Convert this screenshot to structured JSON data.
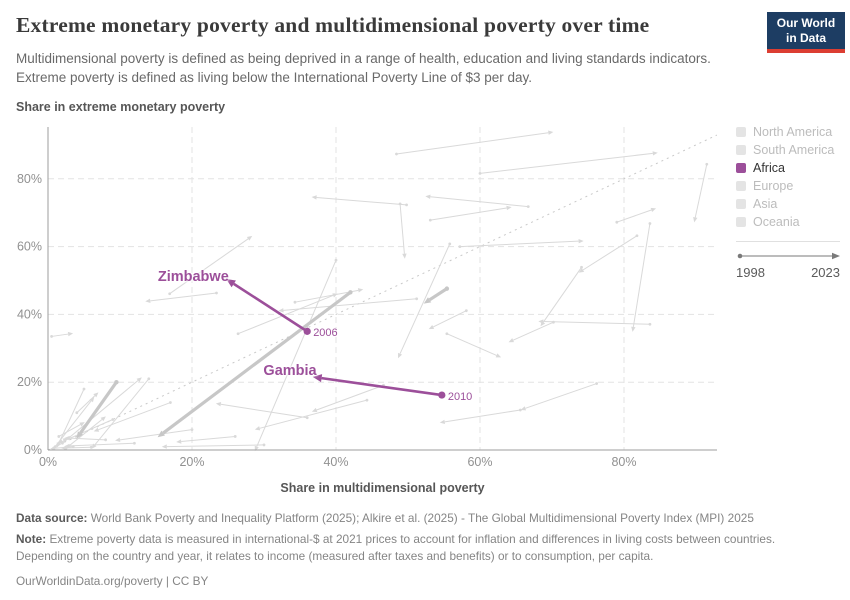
{
  "header": {
    "title": "Extreme monetary poverty and multidimensional poverty over time",
    "subtitle": "Multidimensional poverty is defined as being deprived in a range of health, education and living standards indicators. Extreme poverty is defined as living below the International Poverty Line of $3 per day.",
    "logo": {
      "line1": "Our World",
      "line2": "in Data"
    }
  },
  "colors": {
    "highlight_purple": "#9c4f9a",
    "inactive_swatch": "#e4e4e4",
    "inactive_text": "#bcbcbc",
    "active_text": "#333333",
    "thin_line": "#d9d9d9",
    "thick_line": "#c7c7c7",
    "gridline": "#e3e3e3",
    "axis": "#9e9e9e",
    "parity": "#c9c9c9",
    "tick_text": "#919191",
    "logo_navy": "#1d3d63",
    "logo_red": "#dc3e32"
  },
  "chart_data": {
    "type": "scatter",
    "variant": "connected-arrow-trajectories (start dot 1998 → arrowhead 2023)",
    "title": "Extreme monetary poverty and multidimensional poverty over time",
    "xlabel": "Share in multidimensional poverty",
    "ylabel": "Share in extreme monetary poverty",
    "xlim": [
      0,
      93
    ],
    "ylim": [
      0,
      95
    ],
    "x_ticks": [
      0,
      20,
      40,
      60,
      80
    ],
    "y_ticks": [
      0,
      20,
      40,
      60,
      80
    ],
    "x_tick_labels": [
      "0%",
      "20%",
      "40%",
      "60%",
      "80%"
    ],
    "y_tick_labels": [
      "0%",
      "20%",
      "40%",
      "60%",
      "80%"
    ],
    "grid": true,
    "legend_position": "right",
    "time_range": {
      "start": "1998",
      "end": "2023"
    },
    "parity_line": {
      "style": "dotted",
      "from": [
        0,
        0
      ],
      "to": [
        92.9,
        92.9
      ]
    },
    "highlighted_series": [
      {
        "name": "Zimbabwe",
        "region": "Africa",
        "start": {
          "year": "2006",
          "x": 36.0,
          "y": 35.0
        },
        "end": {
          "x": 25.8,
          "y": 49.0
        }
      },
      {
        "name": "Gambia",
        "region": "Africa",
        "start": {
          "year": "2010",
          "x": 54.7,
          "y": 16.2
        },
        "end": {
          "x": 38.0,
          "y": 21.2
        }
      }
    ],
    "background_trajectories": {
      "description": "Unlabeled grey country trajectories, approximate [x1,y1,x2,y2] in %, arrowhead at end point",
      "segments": [
        [
          48.4,
          87.3,
          69.5,
          93.6
        ],
        [
          60,
          81.6,
          84,
          87.5
        ],
        [
          66.7,
          71.8,
          53.1,
          74.7
        ],
        [
          53.1,
          67.8,
          63.7,
          71.4
        ],
        [
          79,
          67.2,
          83.8,
          70.8
        ],
        [
          91.5,
          84.3,
          89.9,
          68.6
        ],
        [
          57.2,
          60,
          73.7,
          61.6
        ],
        [
          74.1,
          53.9,
          68.8,
          37.7
        ],
        [
          81.8,
          63.2,
          74.3,
          53.1
        ],
        [
          83.6,
          66.8,
          81.3,
          36.3
        ],
        [
          58.1,
          41.1,
          53.5,
          36.3
        ],
        [
          83.6,
          37.1,
          68.8,
          37.9
        ],
        [
          49.8,
          72.3,
          37.3,
          74.5
        ],
        [
          16.9,
          46.1,
          27.8,
          62.3
        ],
        [
          26.4,
          34.3,
          39.6,
          45.6
        ],
        [
          40,
          56,
          29,
          1
        ],
        [
          55.8,
          60.8,
          48.9,
          28.4
        ],
        [
          44.3,
          14.7,
          29.4,
          6.4
        ],
        [
          46.6,
          19.1,
          37.3,
          11.8
        ],
        [
          65.6,
          11.8,
          55.1,
          8.3
        ],
        [
          76.2,
          19.6,
          66.3,
          12.3
        ],
        [
          55.4,
          34.3,
          62.3,
          27.9
        ],
        [
          70.2,
          37.7,
          64.6,
          32.4
        ],
        [
          23.4,
          46.3,
          14.2,
          44
        ],
        [
          34.3,
          43.6,
          43.1,
          47.1
        ],
        [
          51.2,
          44.6,
          32.7,
          41.2
        ],
        [
          48.9,
          72.6,
          49.5,
          57.9
        ],
        [
          0.5,
          33.5,
          2.8,
          34.2
        ],
        [
          12,
          2,
          3,
          1.2
        ],
        [
          30,
          1.5,
          16.5,
          1
        ],
        [
          26,
          4,
          18.5,
          2.5
        ],
        [
          2,
          2,
          12.5,
          20.5
        ],
        [
          1,
          1,
          6,
          14.5
        ],
        [
          9,
          9,
          2,
          2.5
        ],
        [
          20,
          6,
          10,
          3
        ],
        [
          5,
          18,
          1.5,
          2
        ],
        [
          17,
          14,
          7,
          6
        ],
        [
          2.5,
          0.5,
          7.5,
          9
        ],
        [
          14,
          21,
          6.5,
          1.5
        ],
        [
          36,
          9.5,
          24,
          13.5
        ],
        [
          0.8,
          0.6,
          2.2,
          2.8
        ],
        [
          3.5,
          1,
          1,
          0.5
        ],
        [
          6,
          0.8,
          2.5,
          0.6
        ],
        [
          1.5,
          4,
          4.5,
          7.5
        ],
        [
          8,
          3,
          3,
          3.5
        ],
        [
          4,
          11,
          6.5,
          16
        ]
      ],
      "thick_segments": [
        [
          42,
          46.5,
          16,
          5
        ],
        [
          9.5,
          20,
          4.5,
          5
        ],
        [
          55.4,
          47.6,
          53,
          44.3
        ]
      ]
    }
  },
  "legend": {
    "items": [
      {
        "label": "North America",
        "active": false
      },
      {
        "label": "South America",
        "active": false
      },
      {
        "label": "Africa",
        "active": true
      },
      {
        "label": "Europe",
        "active": false
      },
      {
        "label": "Asia",
        "active": false
      },
      {
        "label": "Oceania",
        "active": false
      }
    ],
    "time_start": "1998",
    "time_end": "2023"
  },
  "footer": {
    "data_source_label": "Data source:",
    "data_source_text": "World Bank Poverty and Inequality Platform (2025); Alkire et al. (2025) - The Global Multidimensional Poverty Index (MPI) 2025",
    "note_label": "Note:",
    "note_text": "Extreme poverty data is measured in international-$ at 2021 prices to account for inflation and differences in living costs between countries. Depending on the country and year, it relates to income (measured after taxes and benefits) or to consumption, per capita.",
    "link": "OurWorldinData.org/poverty | CC BY"
  }
}
